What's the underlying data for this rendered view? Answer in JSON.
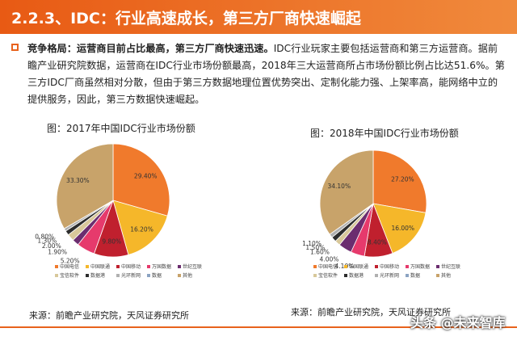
{
  "header": {
    "title": "2.2.3、IDC：行业高速成长，第三方厂商快速崛起"
  },
  "paragraph": {
    "bold": "竞争格局：运营商目前占比最高，第三方厂商快速迅速。",
    "text": "IDC行业玩家主要包括运营商和第三方运营商。据前瞻产业研究院数据，运营商在IDC行业市场份额最高，2018年三大运营商所占市场份额比例占比达51.6%。第三方IDC厂商虽然相对分散，但由于第三方数据地理位置优势突出、定制化能力强、上架率高，能网络中立的提供服务，因此，第三方数据快速崛起。"
  },
  "sources": {
    "left": "来源：前瞻产业研究院，天风证券研究所",
    "right": "来源：前瞻产业研究院，天风证券研究所"
  },
  "watermark": "头条 @未来智库",
  "chart_data": [
    {
      "type": "pie",
      "title": "图：2017年中国IDC行业市场份额",
      "legend": [
        "中国电信",
        "中国联通",
        "中国移动",
        "万国数据",
        "世纪互联",
        "宝信软件",
        "数据港",
        "光环新网",
        "数据",
        "其他"
      ],
      "values": [
        29.4,
        16.2,
        9.8,
        5.2,
        1.9,
        2.0,
        1.3,
        0.8,
        0.0,
        33.3
      ],
      "labels": [
        "29.40%",
        "16.20%",
        "9.80%",
        "5.20%",
        "1.90%",
        "2.00%",
        "1.30%",
        "0.80%",
        "",
        "33.30%"
      ],
      "colors": [
        "#f07a2c",
        "#f5b72a",
        "#c0202e",
        "#e63a6c",
        "#6b2d6f",
        "#d8c89a",
        "#2d2d2d",
        "#b0b0b0",
        "#8ba3c2",
        "#c8a36a"
      ],
      "legend_position": "bottom"
    },
    {
      "type": "pie",
      "title": "图：2018年中国IDC行业市场份额",
      "legend": [
        "中国电信",
        "中国联通",
        "中国移动",
        "万国数据",
        "世纪互联",
        "宝信软件",
        "数据港",
        "光环新网",
        "数据",
        "其他"
      ],
      "values": [
        27.2,
        16.0,
        8.4,
        4.1,
        4.0,
        1.6,
        1.5,
        1.1,
        0.0,
        34.1
      ],
      "labels": [
        "27.20%",
        "16.00%",
        "8.40%",
        "4.10%",
        "4.00%",
        "1.60%",
        "1.50%",
        "1.10%",
        "",
        "34.10%"
      ],
      "colors": [
        "#f07a2c",
        "#f5b72a",
        "#c0202e",
        "#e63a6c",
        "#6b2d6f",
        "#d8c89a",
        "#2d2d2d",
        "#b0b0b0",
        "#8ba3c2",
        "#c8a36a"
      ],
      "legend_position": "bottom"
    }
  ]
}
